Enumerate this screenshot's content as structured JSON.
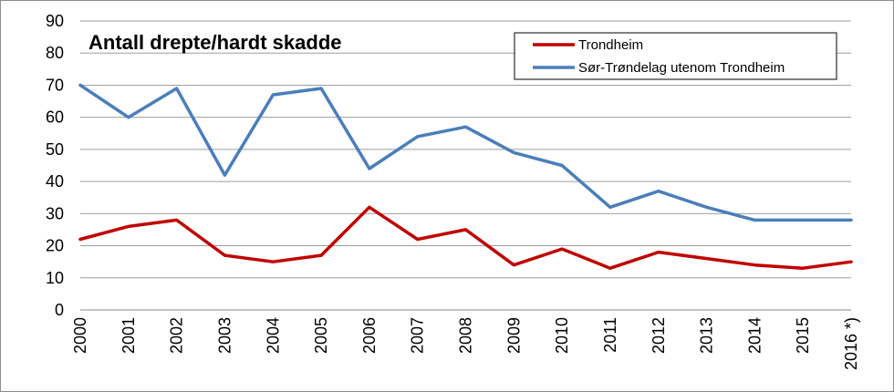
{
  "chart_data": {
    "type": "line",
    "title": "Antall drepte/hardt skadde",
    "categories": [
      "2000",
      "2001",
      "2002",
      "2003",
      "2004",
      "2005",
      "2006",
      "2007",
      "2008",
      "2009",
      "2010",
      "2011",
      "2012",
      "2013",
      "2014",
      "2015",
      "2016 *)"
    ],
    "series": [
      {
        "name": "Trondheim",
        "color": "#c00000",
        "values": [
          22,
          26,
          28,
          17,
          15,
          17,
          32,
          22,
          25,
          14,
          19,
          13,
          18,
          16,
          14,
          13,
          15
        ]
      },
      {
        "name": "Sør-Trøndelag utenom Trondheim",
        "color": "#4a7ebb",
        "values": [
          70,
          60,
          69,
          42,
          67,
          69,
          44,
          54,
          57,
          49,
          45,
          32,
          37,
          32,
          28,
          28,
          28
        ]
      }
    ],
    "ylim": [
      0,
      90
    ],
    "yticks": [
      0,
      10,
      20,
      30,
      40,
      50,
      60,
      70,
      80,
      90
    ],
    "grid": true,
    "legend_position": "top-right"
  }
}
